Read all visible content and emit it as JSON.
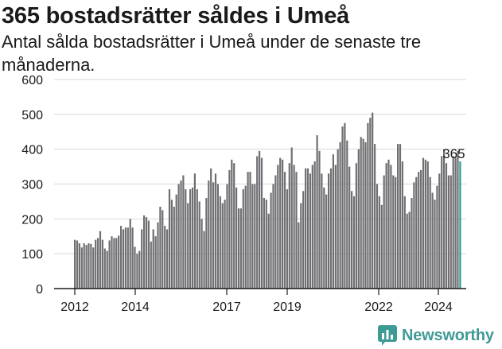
{
  "title": "365 bostadsrätter såldes i Umeå",
  "subtitle": "Antal sålda bostadsrätter i Umeå under de senaste tre månaderna.",
  "brand": {
    "name": "Newsworthy",
    "icon": "newsworthy-chart-icon",
    "color": "#3f9a95"
  },
  "colors": {
    "bar": "#6f6e72",
    "highlight": "#2a9a96",
    "grid": "#d8d8d8",
    "axis": "#1a1a1a"
  },
  "chart_data": {
    "type": "bar",
    "title": "365 bostadsrätter såldes i Umeå",
    "subtitle": "Antal sålda bostadsrätter i Umeå under de senaste tre månaderna.",
    "xlabel": "",
    "ylabel": "",
    "ylim": [
      0,
      600
    ],
    "yticks": [
      0,
      100,
      200,
      300,
      400,
      500,
      600
    ],
    "xticks": [
      "2012",
      "2014",
      "2017",
      "2019",
      "2022",
      "2024"
    ],
    "grid": true,
    "highlight_label": "365",
    "series": [
      {
        "name": "",
        "values": [
          140,
          138,
          130,
          118,
          130,
          125,
          130,
          128,
          118,
          140,
          145,
          165,
          140,
          115,
          108,
          138,
          150,
          145,
          145,
          152,
          180,
          170,
          175,
          175,
          200,
          175,
          120,
          100,
          108,
          170,
          210,
          205,
          195,
          135,
          170,
          150,
          190,
          235,
          225,
          180,
          170,
          285,
          255,
          235,
          270,
          300,
          310,
          325,
          285,
          245,
          285,
          290,
          330,
          285,
          250,
          200,
          165,
          260,
          310,
          345,
          305,
          330,
          300,
          265,
          245,
          255,
          300,
          340,
          370,
          360,
          290,
          230,
          230,
          285,
          295,
          335,
          335,
          300,
          300,
          380,
          395,
          375,
          260,
          255,
          215,
          275,
          300,
          325,
          355,
          375,
          370,
          335,
          285,
          360,
          405,
          355,
          335,
          190,
          245,
          280,
          345,
          345,
          330,
          355,
          365,
          440,
          395,
          330,
          290,
          270,
          330,
          345,
          385,
          355,
          400,
          420,
          465,
          475,
          425,
          350,
          280,
          265,
          360,
          400,
          435,
          430,
          420,
          475,
          490,
          505,
          415,
          300,
          265,
          240,
          325,
          360,
          370,
          355,
          325,
          320,
          415,
          415,
          365,
          265,
          215,
          220,
          260,
          305,
          320,
          335,
          340,
          375,
          370,
          365,
          320,
          275,
          255,
          295,
          330,
          380,
          400,
          360,
          325,
          325,
          380,
          375,
          395,
          365
        ]
      }
    ]
  }
}
